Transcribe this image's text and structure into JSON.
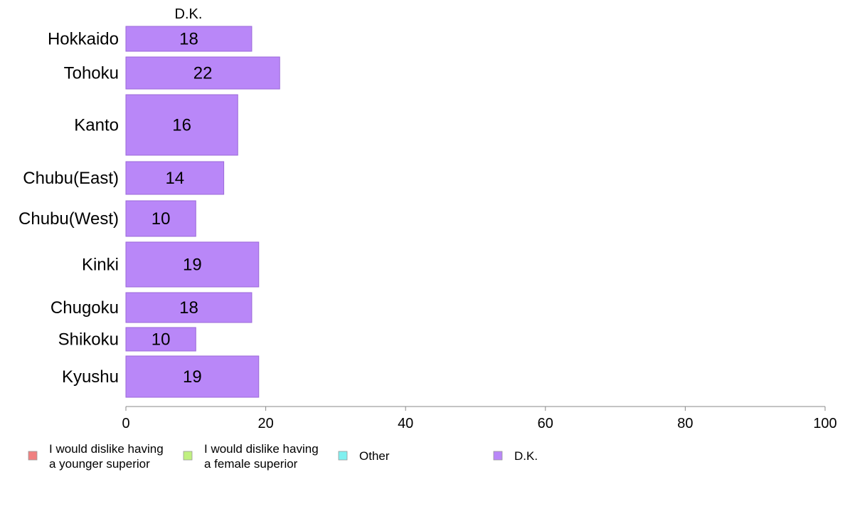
{
  "chart_data": {
    "type": "bar",
    "orientation": "horizontal",
    "title": "D.K.",
    "categories": [
      "Hokkaido",
      "Tohoku",
      "Kanto",
      "Chubu(East)",
      "Chubu(West)",
      "Kinki",
      "Chugoku",
      "Shikoku",
      "Kyushu"
    ],
    "series": [
      {
        "name": "D.K.",
        "values": [
          18,
          22,
          16,
          14,
          10,
          19,
          18,
          10,
          19
        ]
      }
    ],
    "data_labels": [
      "18",
      "22",
      "16",
      "14",
      "10",
      "19",
      "18",
      "10",
      "19"
    ],
    "xlim": [
      0,
      100
    ],
    "x_ticks": [
      "0",
      "20",
      "40",
      "60",
      "80",
      "100"
    ],
    "grid": false,
    "legend": {
      "placement": "bottom",
      "entries": [
        {
          "lines": [
            "I would dislike having",
            "a younger superior"
          ],
          "color": "#f08080"
        },
        {
          "lines": [
            "I would dislike having",
            "a female superior"
          ],
          "color": "#c0f080"
        },
        {
          "lines": [
            "Other"
          ],
          "color": "#80f0f0"
        },
        {
          "lines": [
            "D.K."
          ],
          "color": "#b987f8"
        }
      ]
    },
    "bar_color": "#b987f8",
    "bar_edge_color": "#9b6ad8"
  }
}
